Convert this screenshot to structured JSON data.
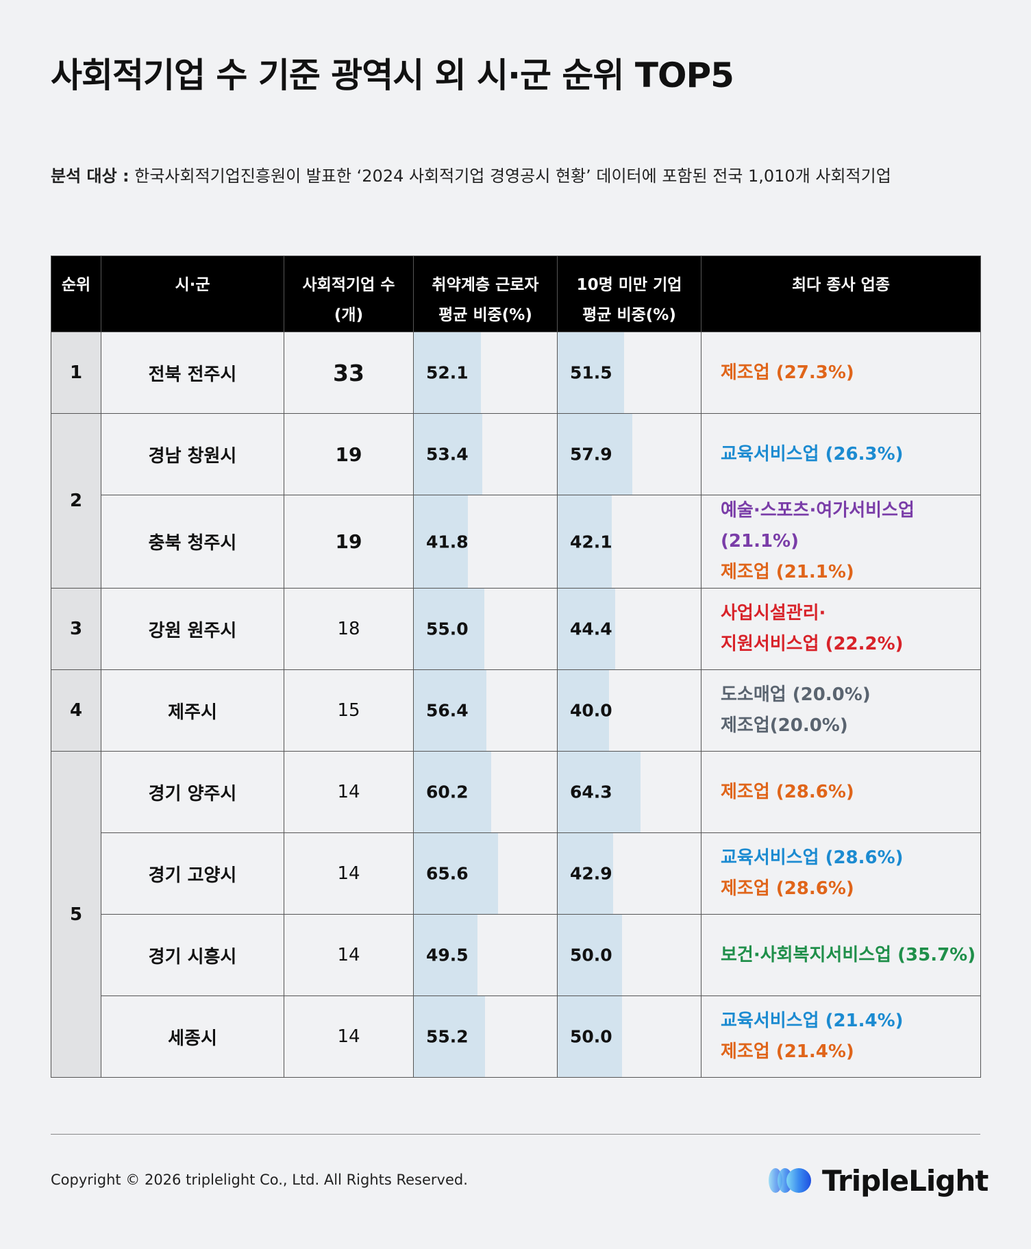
{
  "title": "사회적기업 수 기준 광역시 외 시·군 순위 TOP5",
  "subtitle": {
    "label": "분석 대상 :",
    "text": " 한국사회적기업진흥원이 발표한 ‘2024 사회적기업 경영공시 현황’ 데이터에 포함된 전국 1,010개 사회적기업"
  },
  "headers": {
    "rank": "순위",
    "city": "시·군",
    "count_line1": "사회적기업 수",
    "count_line2": "(개)",
    "vuln_line1": "취약계층 근로자",
    "vuln_line2": "평균 비중(%)",
    "small_line1": "10명 미만 기업",
    "small_line2": "평균 비중(%)",
    "industry": "최다 종사 업종"
  },
  "colors": {
    "manufacturing": "#e0651a",
    "education": "#1c8bd1",
    "arts": "#7a3da8",
    "facility": "#d8232a",
    "retail": "#5a6470",
    "health": "#1f8f4a",
    "bar": "#d3e3ee",
    "header_bg": "#000000",
    "rank_bg": "#e1e2e4"
  },
  "rows": [
    {
      "rank": "1",
      "city": "전북 전주시",
      "count": "33",
      "vuln": 52.1,
      "vuln_label": "52.1",
      "small": 51.5,
      "small_label": "51.5",
      "industries": [
        {
          "text": "제조업 (27.3%)",
          "color": "manufacturing"
        }
      ]
    },
    {
      "rank": "2",
      "city": "경남 창원시",
      "count": "19",
      "vuln": 53.4,
      "vuln_label": "53.4",
      "small": 57.9,
      "small_label": "57.9",
      "industries": [
        {
          "text": "교육서비스업 (26.3%)",
          "color": "education"
        }
      ]
    },
    {
      "rank": "",
      "city": "충북 청주시",
      "count": "19",
      "vuln": 41.8,
      "vuln_label": "41.8",
      "small": 42.1,
      "small_label": "42.1",
      "industries": [
        {
          "text": "예술·스포츠·여가서비스업 (21.1%)",
          "color": "arts"
        },
        {
          "text": "제조업 (21.1%)",
          "color": "manufacturing"
        }
      ]
    },
    {
      "rank": "3",
      "city": "강원 원주시",
      "count": "18",
      "vuln": 55.0,
      "vuln_label": "55.0",
      "small": 44.4,
      "small_label": "44.4",
      "industries": [
        {
          "text": "사업시설관리·",
          "color": "facility"
        },
        {
          "text": "지원서비스업 (22.2%)",
          "color": "facility"
        }
      ]
    },
    {
      "rank": "4",
      "city": "제주시",
      "count": "15",
      "vuln": 56.4,
      "vuln_label": "56.4",
      "small": 40.0,
      "small_label": "40.0",
      "industries": [
        {
          "text": "도소매업 (20.0%)",
          "color": "retail"
        },
        {
          "text": "제조업(20.0%)",
          "color": "retail"
        }
      ]
    },
    {
      "rank": "5",
      "city": "경기 양주시",
      "count": "14",
      "vuln": 60.2,
      "vuln_label": "60.2",
      "small": 64.3,
      "small_label": "64.3",
      "industries": [
        {
          "text": "제조업 (28.6%)",
          "color": "manufacturing"
        }
      ]
    },
    {
      "rank": "",
      "city": "경기 고양시",
      "count": "14",
      "vuln": 65.6,
      "vuln_label": "65.6",
      "small": 42.9,
      "small_label": "42.9",
      "industries": [
        {
          "text": "교육서비스업 (28.6%)",
          "color": "education"
        },
        {
          "text": "제조업 (28.6%)",
          "color": "manufacturing"
        }
      ]
    },
    {
      "rank": "",
      "city": "경기 시흥시",
      "count": "14",
      "vuln": 49.5,
      "vuln_label": "49.5",
      "small": 50.0,
      "small_label": "50.0",
      "industries": [
        {
          "text": "보건·사회복지서비스업 (35.7%)",
          "color": "health"
        }
      ]
    },
    {
      "rank": "",
      "city": "세종시",
      "count": "14",
      "vuln": 55.2,
      "vuln_label": "55.2",
      "small": 50.0,
      "small_label": "50.0",
      "industries": [
        {
          "text": "교육서비스업 (21.4%)",
          "color": "education"
        },
        {
          "text": "제조업 (21.4%)",
          "color": "manufacturing"
        }
      ]
    }
  ],
  "footer": {
    "copyright": "Copyright © 2026 triplelight Co., Ltd. All Rights Reserved.",
    "logo_text": "TripleLight"
  }
}
